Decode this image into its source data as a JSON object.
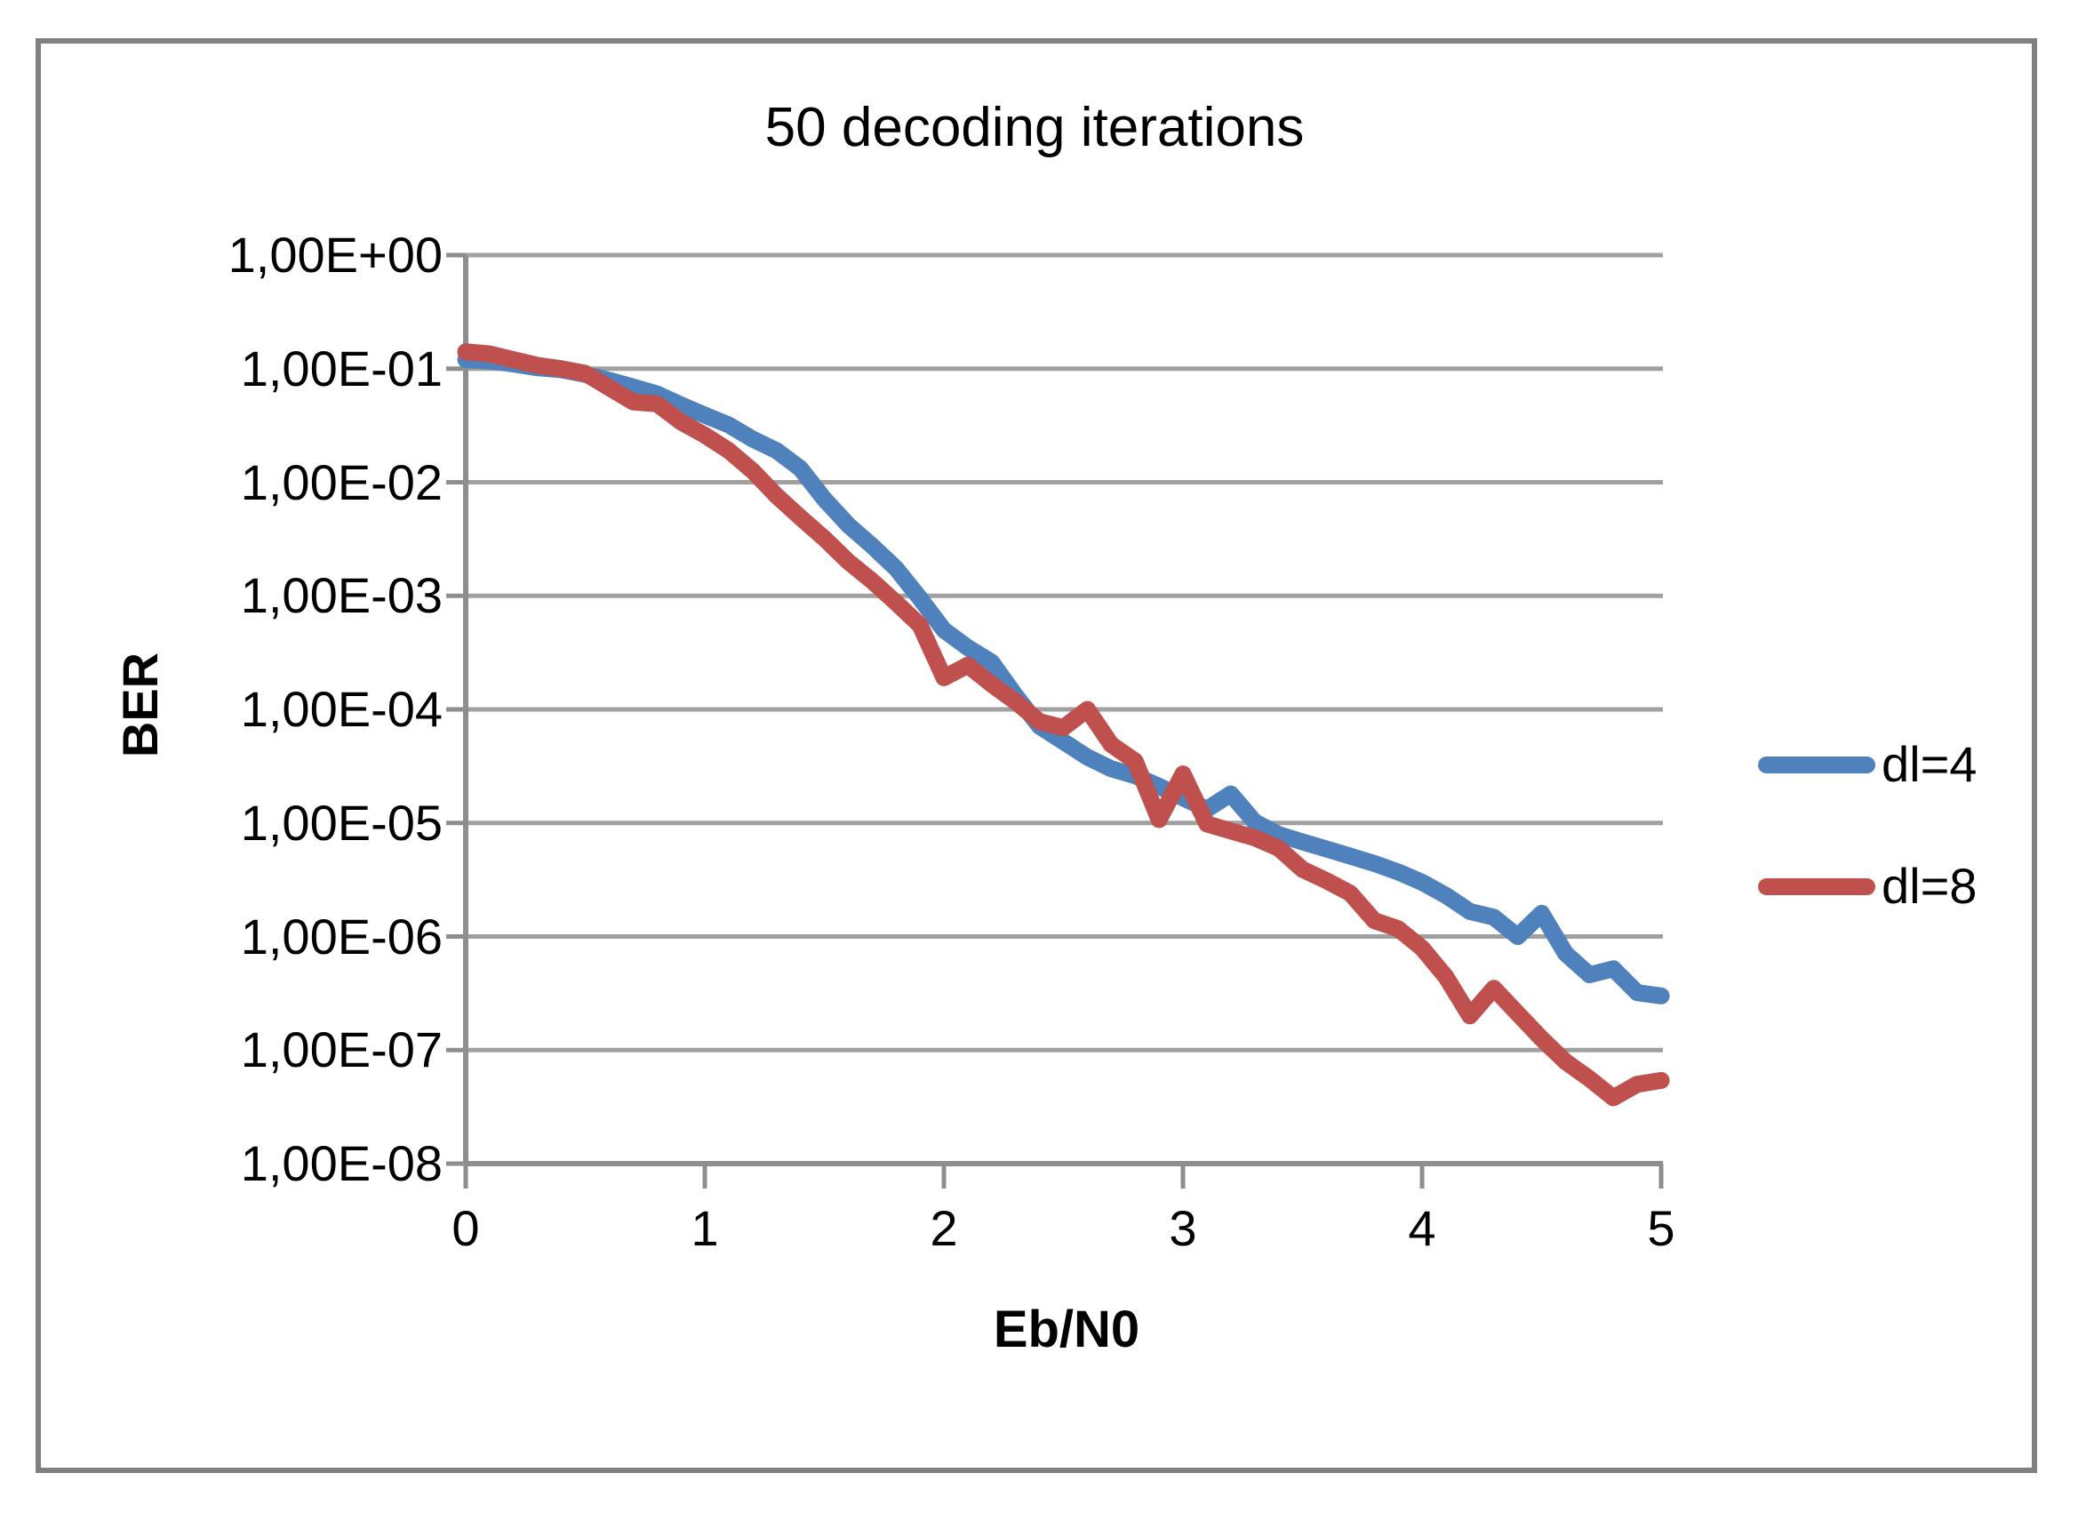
{
  "chart_data": {
    "type": "line",
    "title": "50 decoding iterations",
    "xlabel": "Eb/N0",
    "ylabel": "BER",
    "grid": true,
    "legend_position": "right",
    "x_axis": {
      "min": 0,
      "max": 5,
      "tick_labels": [
        "0",
        "1",
        "2",
        "3",
        "4",
        "5"
      ]
    },
    "y_axis": {
      "scale": "log",
      "min": 1e-08,
      "max": 1,
      "tick_labels": [
        "1,00E+00",
        "1,00E-01",
        "1,00E-02",
        "1,00E-03",
        "1,00E-04",
        "1,00E-05",
        "1,00E-06",
        "1,00E-07",
        "1,00E-08"
      ]
    },
    "series": [
      {
        "name": "dl=4",
        "color": "#4F81BD",
        "x_start": 0,
        "x_step": 0.1,
        "values": [
          0.12,
          0.117,
          0.11,
          0.102,
          0.098,
          0.089,
          0.079,
          0.069,
          0.06,
          0.048,
          0.039,
          0.032,
          0.024,
          0.019,
          0.0132,
          0.0071,
          0.0042,
          0.00275,
          0.00174,
          0.00095,
          0.0005,
          0.00035,
          0.00026,
          0.000132,
          7.1e-05,
          5.2e-05,
          3.8e-05,
          3e-05,
          2.6e-05,
          2.1e-05,
          1.66e-05,
          1.32e-05,
          1.8e-05,
          1.02e-05,
          7.9e-06,
          6.8e-06,
          5.9e-06,
          5.1e-06,
          4.4e-06,
          3.7e-06,
          3e-06,
          2.3e-06,
          1.66e-06,
          1.48e-06,
          1e-06,
          1.6e-06,
          7.1e-07,
          4.6e-07,
          5.2e-07,
          3.2e-07,
          3e-07
        ]
      },
      {
        "name": "dl=8",
        "color": "#C0504D",
        "x_start": 0,
        "x_step": 0.1,
        "values": [
          0.141,
          0.135,
          0.12,
          0.107,
          0.1,
          0.091,
          0.068,
          0.051,
          0.049,
          0.034,
          0.026,
          0.019,
          0.0126,
          0.0076,
          0.0049,
          0.0032,
          0.002,
          0.00135,
          0.00087,
          0.00055,
          0.00019,
          0.000245,
          0.000166,
          0.000117,
          7.8e-05,
          6.9e-05,
          0.0001,
          4.9e-05,
          3.5e-05,
          1.07e-05,
          2.7e-05,
          9.8e-06,
          8.5e-06,
          7.4e-06,
          6e-06,
          3.9e-06,
          3.1e-06,
          2.4e-06,
          1.38e-06,
          1.17e-06,
          7.9e-07,
          4.4e-07,
          2e-07,
          3.5e-07,
          2.1e-07,
          1.26e-07,
          7.9e-08,
          5.6e-08,
          3.8e-08,
          5e-08,
          5.4e-08
        ]
      }
    ]
  },
  "colors": {
    "frame": "#808080",
    "gridline": "#A0A0A0",
    "axis": "#8E8E8E",
    "text": "#000000"
  }
}
